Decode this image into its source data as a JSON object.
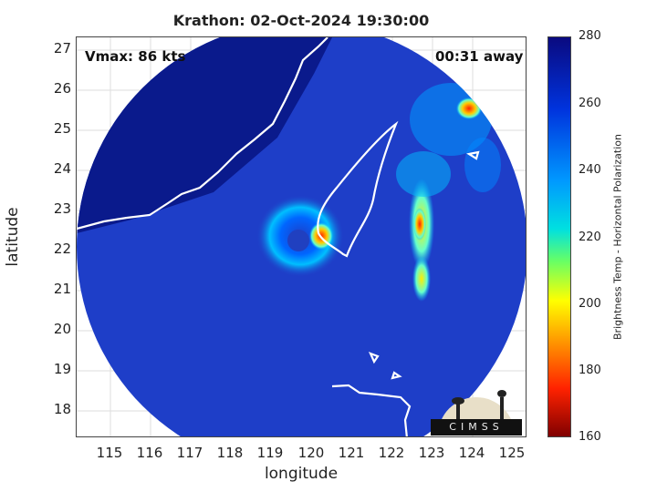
{
  "title": "Krathon: 02-Oct-2024 19:30:00",
  "vmax_label": "Vmax: 86 kts",
  "away_label": "00:31 away",
  "xlabel": "longitude",
  "ylabel": "latitude",
  "x_ticks": [
    "115",
    "116",
    "117",
    "118",
    "119",
    "120",
    "121",
    "122",
    "123",
    "124",
    "125"
  ],
  "y_ticks": [
    "27",
    "26",
    "25",
    "24",
    "23",
    "22",
    "21",
    "20",
    "19",
    "18"
  ],
  "colorbar": {
    "label": "Brightness Temp - Horizontal Polarization",
    "ticks": [
      "280",
      "260",
      "240",
      "220",
      "200",
      "180",
      "160"
    ],
    "range": [
      160,
      280
    ]
  },
  "logo_text": "CIMSS",
  "map_extent": {
    "lon": [
      114.3,
      125.0
    ],
    "lat": [
      17.3,
      27.3
    ]
  },
  "colors": {
    "cold_high": "#0a0a80",
    "background_water": "#1e3ec8",
    "convection": "#ff2200"
  }
}
